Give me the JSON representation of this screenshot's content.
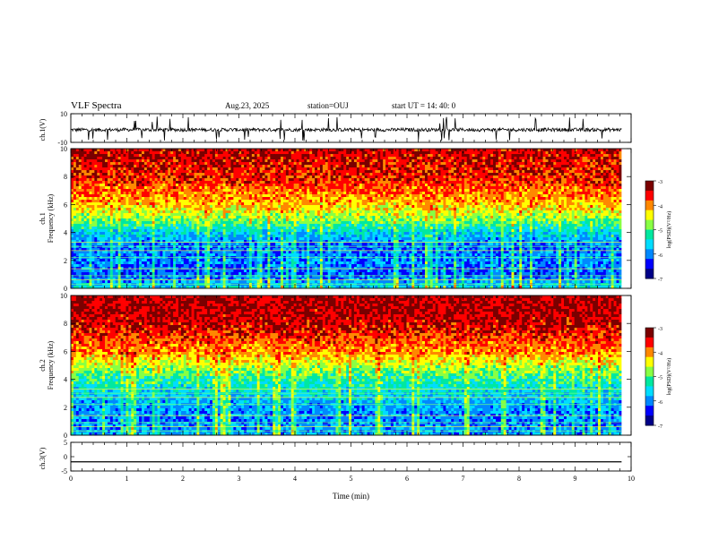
{
  "header": {
    "title": "VLF Spectra",
    "date": "Aug.23, 2025",
    "station": "station=OUJ",
    "start": "start  UT  =   14: 40: 0"
  },
  "colors": {
    "spectrum_scale": [
      "#7a0000",
      "#ff0000",
      "#ff8800",
      "#ffff00",
      "#88ff44",
      "#00e8a0",
      "#00ddff",
      "#0088ff",
      "#0000ff",
      "#000088"
    ],
    "trace": "#000000",
    "axis": "#000000"
  },
  "chart_data": [
    {
      "type": "line",
      "name": "waveform-ch1",
      "ylabel": "ch.1(V)",
      "ylim": [
        -10,
        10
      ],
      "yticks": [
        {
          "value": 10,
          "label": "10"
        },
        {
          "value": -10,
          "label": "-10"
        }
      ],
      "xlim": [
        0,
        10
      ],
      "data_extent_x": [
        0,
        9.83
      ],
      "description_values": "noisy waveform around -1 V with spikes to about -9 V and +8 V",
      "baseline": -1.2,
      "spread": 1.2
    },
    {
      "type": "heatmap",
      "name": "spectrogram-ch1",
      "ylabel": "ch.1\nFrequency  (kHz)",
      "ylabel_lines": [
        "ch.1",
        "Frequency  (kHz)"
      ],
      "ylim": [
        0,
        10
      ],
      "yticks": [
        0,
        2,
        4,
        6,
        8,
        10
      ],
      "xlim": [
        0,
        10
      ],
      "data_extent_x": [
        0,
        9.83
      ],
      "colorbar": {
        "label": "log(PSD)(V²/Hz)",
        "range": [
          -7,
          -3
        ],
        "ticks": [
          -7,
          -6,
          -5,
          -4,
          -3
        ]
      },
      "profile_db_by_freq": [
        {
          "f": 0.0,
          "v": -5.5
        },
        {
          "f": 1.0,
          "v": -6.2
        },
        {
          "f": 2.0,
          "v": -6.0
        },
        {
          "f": 3.0,
          "v": -6.1
        },
        {
          "f": 4.0,
          "v": -5.6
        },
        {
          "f": 5.0,
          "v": -4.8
        },
        {
          "f": 6.0,
          "v": -4.2
        },
        {
          "f": 8.0,
          "v": -3.6
        },
        {
          "f": 10.0,
          "v": -3.4
        }
      ]
    },
    {
      "type": "heatmap",
      "name": "spectrogram-ch2",
      "ylabel": "ch.2\nFrequency  (kHz)",
      "ylabel_lines": [
        "ch.2",
        "Frequency  (kHz)"
      ],
      "ylim": [
        0,
        10
      ],
      "yticks": [
        0,
        2,
        4,
        6,
        8,
        10
      ],
      "xlim": [
        0,
        10
      ],
      "data_extent_x": [
        0,
        9.83
      ],
      "colorbar": {
        "label": "log(PSD)(V²/Hz)",
        "range": [
          -7,
          -3
        ],
        "ticks": [
          -7,
          -6,
          -5,
          -4,
          -3
        ]
      },
      "profile_db_by_freq": [
        {
          "f": 0.0,
          "v": -5.8
        },
        {
          "f": 1.0,
          "v": -6.0
        },
        {
          "f": 2.0,
          "v": -5.9
        },
        {
          "f": 3.0,
          "v": -5.6
        },
        {
          "f": 4.0,
          "v": -5.2
        },
        {
          "f": 5.0,
          "v": -4.6
        },
        {
          "f": 6.0,
          "v": -4.0
        },
        {
          "f": 8.0,
          "v": -3.4
        },
        {
          "f": 10.0,
          "v": -3.3
        }
      ]
    },
    {
      "type": "line",
      "name": "waveform-ch3",
      "ylabel": "ch.3(V)",
      "ylim": [
        -5,
        5
      ],
      "yticks": [
        {
          "value": 5,
          "label": "5"
        },
        {
          "value": 0,
          "label": "0"
        },
        {
          "value": -5,
          "label": "-5"
        }
      ],
      "xlim": [
        0,
        10
      ],
      "data_extent_x": [
        0,
        9.83
      ],
      "baseline": -1.8,
      "spread": 0.0
    }
  ],
  "x_axis": {
    "label": "Time  (min)",
    "ticks": [
      0,
      1,
      2,
      3,
      4,
      5,
      6,
      7,
      8,
      9,
      10
    ]
  }
}
